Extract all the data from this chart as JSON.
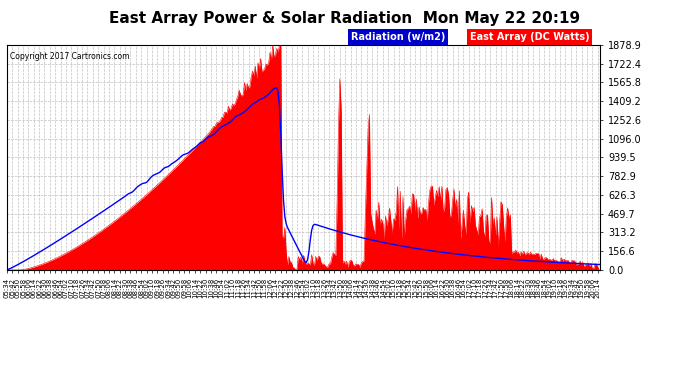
{
  "title": "East Array Power & Solar Radiation  Mon May 22 20:19",
  "copyright": "Copyright 2017 Cartronics.com",
  "legend_radiation": "Radiation (w/m2)",
  "legend_array": "East Array (DC Watts)",
  "ymax": 1878.9,
  "yticks": [
    0.0,
    156.6,
    313.2,
    469.7,
    626.3,
    782.9,
    939.5,
    1096.0,
    1252.6,
    1409.2,
    1565.8,
    1722.4,
    1878.9
  ],
  "background_color": "#ffffff",
  "plot_bg_color": "#ffffff",
  "radiation_color": "#0000ff",
  "array_color": "#ff0000",
  "array_fill_color": "#ff0000",
  "grid_color": "#c0c0c0",
  "title_fontsize": 11,
  "legend_radiation_bg": "#0000cc",
  "legend_array_bg": "#ff0000"
}
